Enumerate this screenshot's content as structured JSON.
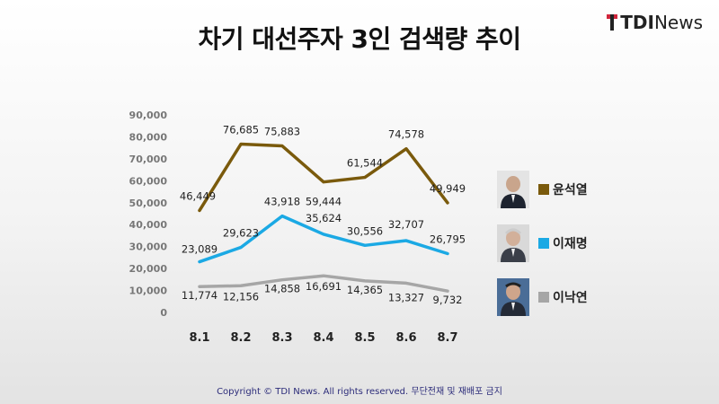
{
  "title": "차기 대선주자 3인 검색량 추이",
  "logo": {
    "strong": "TDI",
    "rest": "News"
  },
  "footer": "Copyright © TDI News. All rights reserved. 무단전재 및 재배포 금지",
  "chart_data": {
    "type": "line",
    "title": "차기 대선주자 3인 검색량 추이",
    "xlabel": "",
    "ylabel": "",
    "ylim": [
      0,
      90000
    ],
    "yticks": [
      0,
      10000,
      20000,
      30000,
      40000,
      50000,
      60000,
      70000,
      80000,
      90000
    ],
    "ytick_labels": [
      "0",
      "10,000",
      "20,000",
      "30,000",
      "40,000",
      "50,000",
      "60,000",
      "70,000",
      "80,000",
      "90,000"
    ],
    "categories": [
      "8.1",
      "8.2",
      "8.3",
      "8.4",
      "8.5",
      "8.6",
      "8.7"
    ],
    "grid": false,
    "legend_position": "right",
    "series": [
      {
        "name": "윤석열",
        "color": "#7a5a0c",
        "values": [
          46449,
          76685,
          75883,
          59444,
          61544,
          74578,
          49949
        ],
        "labels": [
          "46,449",
          "76,685",
          "75,883",
          "59,444",
          "61,544",
          "74,578",
          "49,949"
        ]
      },
      {
        "name": "이재명",
        "color": "#1ba9e4",
        "values": [
          23089,
          29623,
          43918,
          35624,
          30556,
          32707,
          26795
        ],
        "labels": [
          "23,089",
          "29,623",
          "43,918",
          "35,624",
          "30,556",
          "32,707",
          "26,795"
        ]
      },
      {
        "name": "이낙연",
        "color": "#a6a6a6",
        "values": [
          11774,
          12156,
          14858,
          16691,
          14365,
          13327,
          9732
        ],
        "labels": [
          "11,774",
          "12,156",
          "14,858",
          "16,691",
          "14,365",
          "13,327",
          "9,732"
        ]
      }
    ]
  }
}
